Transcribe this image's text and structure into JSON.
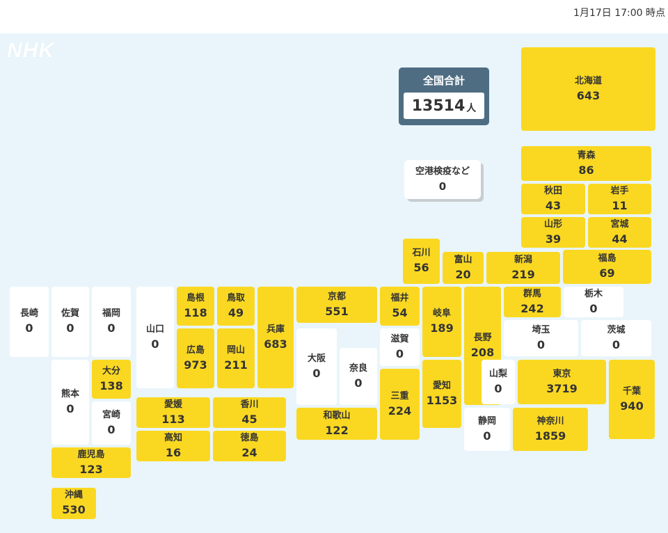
{
  "timestamp": "1月17日 17:00 時点",
  "logo": "NHK",
  "total": {
    "title": "全国合計",
    "value": "13514",
    "unit": "人"
  },
  "airport": {
    "name": "空港検疫など",
    "count": "0"
  },
  "colors": {
    "has_cases": "#fad822",
    "zero_cases": "#ffffff",
    "background": "#e9f5fb",
    "total_panel": "#4f6d82"
  },
  "prefectures": [
    {
      "id": "hokkaido",
      "name": "北海道",
      "count": "643",
      "color": "yellow"
    },
    {
      "id": "aomori",
      "name": "青森",
      "count": "86",
      "color": "yellow"
    },
    {
      "id": "akita",
      "name": "秋田",
      "count": "43",
      "color": "yellow"
    },
    {
      "id": "iwate",
      "name": "岩手",
      "count": "11",
      "color": "yellow"
    },
    {
      "id": "yamagata",
      "name": "山形",
      "count": "39",
      "color": "yellow"
    },
    {
      "id": "miyagi",
      "name": "宮城",
      "count": "44",
      "color": "yellow"
    },
    {
      "id": "ishikawa",
      "name": "石川",
      "count": "56",
      "color": "yellow"
    },
    {
      "id": "toyama",
      "name": "富山",
      "count": "20",
      "color": "yellow"
    },
    {
      "id": "niigata",
      "name": "新潟",
      "count": "219",
      "color": "yellow"
    },
    {
      "id": "fukushima",
      "name": "福島",
      "count": "69",
      "color": "yellow"
    },
    {
      "id": "nagasaki",
      "name": "長崎",
      "count": "0",
      "color": "white"
    },
    {
      "id": "saga",
      "name": "佐賀",
      "count": "0",
      "color": "white"
    },
    {
      "id": "fukuoka",
      "name": "福岡",
      "count": "0",
      "color": "white"
    },
    {
      "id": "yamaguchi",
      "name": "山口",
      "count": "0",
      "color": "white"
    },
    {
      "id": "shimane",
      "name": "島根",
      "count": "118",
      "color": "yellow"
    },
    {
      "id": "tottori",
      "name": "鳥取",
      "count": "49",
      "color": "yellow"
    },
    {
      "id": "hyogo",
      "name": "兵庫",
      "count": "683",
      "color": "yellow"
    },
    {
      "id": "kyoto",
      "name": "京都",
      "count": "551",
      "color": "yellow"
    },
    {
      "id": "fukui",
      "name": "福井",
      "count": "54",
      "color": "yellow"
    },
    {
      "id": "gifu",
      "name": "岐阜",
      "count": "189",
      "color": "yellow"
    },
    {
      "id": "nagano",
      "name": "長野",
      "count": "208",
      "color": "yellow"
    },
    {
      "id": "gunma",
      "name": "群馬",
      "count": "242",
      "color": "yellow"
    },
    {
      "id": "tochigi",
      "name": "栃木",
      "count": "0",
      "color": "white"
    },
    {
      "id": "hiroshima",
      "name": "広島",
      "count": "973",
      "color": "yellow"
    },
    {
      "id": "okayama",
      "name": "岡山",
      "count": "211",
      "color": "yellow"
    },
    {
      "id": "osaka",
      "name": "大阪",
      "count": "0",
      "color": "white"
    },
    {
      "id": "nara",
      "name": "奈良",
      "count": "0",
      "color": "white"
    },
    {
      "id": "shiga",
      "name": "滋賀",
      "count": "0",
      "color": "white"
    },
    {
      "id": "saitama",
      "name": "埼玉",
      "count": "0",
      "color": "white"
    },
    {
      "id": "ibaraki",
      "name": "茨城",
      "count": "0",
      "color": "white"
    },
    {
      "id": "kumamoto",
      "name": "熊本",
      "count": "0",
      "color": "white"
    },
    {
      "id": "oita",
      "name": "大分",
      "count": "138",
      "color": "yellow"
    },
    {
      "id": "miyazaki",
      "name": "宮崎",
      "count": "0",
      "color": "white"
    },
    {
      "id": "mie",
      "name": "三重",
      "count": "224",
      "color": "yellow"
    },
    {
      "id": "aichi",
      "name": "愛知",
      "count": "1153",
      "color": "yellow"
    },
    {
      "id": "yamanashi",
      "name": "山梨",
      "count": "0",
      "color": "white"
    },
    {
      "id": "tokyo",
      "name": "東京",
      "count": "3719",
      "color": "yellow"
    },
    {
      "id": "chiba",
      "name": "千葉",
      "count": "940",
      "color": "yellow"
    },
    {
      "id": "ehime",
      "name": "愛媛",
      "count": "113",
      "color": "yellow"
    },
    {
      "id": "kagawa",
      "name": "香川",
      "count": "45",
      "color": "yellow"
    },
    {
      "id": "wakayama",
      "name": "和歌山",
      "count": "122",
      "color": "yellow"
    },
    {
      "id": "shizuoka",
      "name": "静岡",
      "count": "0",
      "color": "white"
    },
    {
      "id": "kanagawa",
      "name": "神奈川",
      "count": "1859",
      "color": "yellow"
    },
    {
      "id": "kochi",
      "name": "高知",
      "count": "16",
      "color": "yellow"
    },
    {
      "id": "tokushima",
      "name": "徳島",
      "count": "24",
      "color": "yellow"
    },
    {
      "id": "kagoshima",
      "name": "鹿児島",
      "count": "123",
      "color": "yellow"
    },
    {
      "id": "okinawa",
      "name": "沖縄",
      "count": "530",
      "color": "yellow"
    }
  ]
}
